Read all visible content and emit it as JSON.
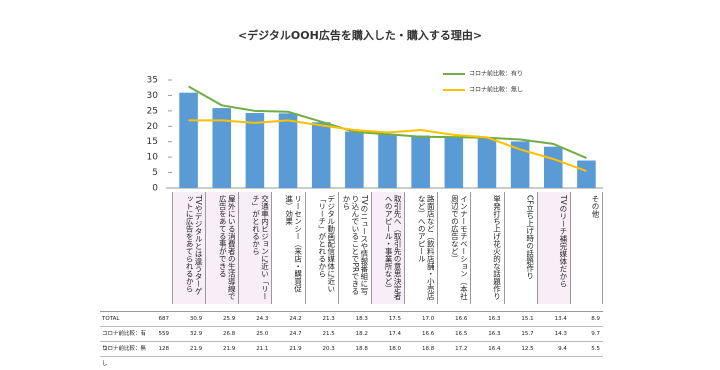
{
  "chart_data": {
    "type": "bar-line",
    "title": "<デジタルOOH広告を購入した・購入する理由>",
    "categories": [
      "TVやデジタルとは違うターゲットに広告をあてられるから",
      "屋外にいる消費者の生活導線で広告をあてる事ができる",
      "交通車内ビジョンに近い「リーチ」がとれるから",
      "リーセンシー（来店・購買促進）効果",
      "デジタル動画配信媒体に近い「リーチ」がとれるから",
      "TVのニュースや情報番組に写り込んでいることでPRできるから",
      "取引先へ（取引先の意思決定者へのアピール・事業所など）",
      "路面店など（飲料店舗・小売店など）へのアピール",
      "インナーモチベーション（本社周辺での広告など）",
      "単発打ち上げ花火的な話題作り",
      "CF立ち上げ時の話題作り",
      "TVのリーチ補完媒体だから",
      "その他"
    ],
    "series": [
      {
        "name": "TOTAL",
        "mark": "bar",
        "color": "#5b9bd5",
        "n": 687,
        "values": [
          30.9,
          25.9,
          24.3,
          24.2,
          21.3,
          18.3,
          17.5,
          17.0,
          16.6,
          16.3,
          15.1,
          13.4,
          8.9
        ],
        "value_labels": [
          "30.9",
          "25.9",
          "24.3",
          "24.2",
          "21.3",
          "18.3",
          "17.5",
          "17.0",
          "16.6",
          "16.3",
          "15.1",
          "13.4",
          "8.9"
        ]
      },
      {
        "name": "コロナ前比較：有り",
        "mark": "line",
        "color": "#70ad47",
        "n": 559,
        "values": [
          32.9,
          26.8,
          25.0,
          24.7,
          21.5,
          18.2,
          17.4,
          16.6,
          16.5,
          16.3,
          15.7,
          14.3,
          9.7
        ],
        "value_labels": [
          "32.9",
          "26.8",
          "25.0",
          "24.7",
          "21.5",
          "18.2",
          "17.4",
          "16.6",
          "16.5",
          "16.3",
          "15.7",
          "14.3",
          "9.7"
        ]
      },
      {
        "name": "コロナ前比較：無し",
        "mark": "line",
        "color": "#ffc000",
        "n": 128,
        "values": [
          21.9,
          21.9,
          21.1,
          21.9,
          20.3,
          18.8,
          18.0,
          18.8,
          17.2,
          16.4,
          12.5,
          9.4,
          5.5
        ],
        "value_labels": [
          "21.9",
          "21.9",
          "21.1",
          "21.9",
          "20.3",
          "18.8",
          "18.0",
          "18.8",
          "17.2",
          "16.4",
          "12.5",
          "9.4",
          "5.5"
        ]
      }
    ],
    "ylim": [
      0,
      35
    ],
    "yticks": [
      0,
      5,
      10,
      15,
      20,
      25,
      30,
      35
    ],
    "grid": false,
    "legend": "top-right"
  }
}
